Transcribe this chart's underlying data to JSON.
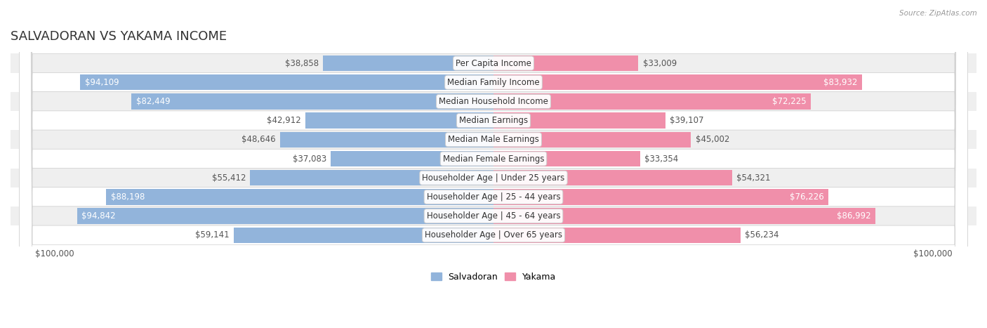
{
  "title": "SALVADORAN VS YAKAMA INCOME",
  "source": "Source: ZipAtlas.com",
  "categories": [
    "Per Capita Income",
    "Median Family Income",
    "Median Household Income",
    "Median Earnings",
    "Median Male Earnings",
    "Median Female Earnings",
    "Householder Age | Under 25 years",
    "Householder Age | 25 - 44 years",
    "Householder Age | 45 - 64 years",
    "Householder Age | Over 65 years"
  ],
  "salvadoran_values": [
    38858,
    94109,
    82449,
    42912,
    48646,
    37083,
    55412,
    88198,
    94842,
    59141
  ],
  "yakama_values": [
    33009,
    83932,
    72225,
    39107,
    45002,
    33354,
    54321,
    76226,
    86992,
    56234
  ],
  "salvadoran_labels": [
    "$38,858",
    "$94,109",
    "$82,449",
    "$42,912",
    "$48,646",
    "$37,083",
    "$55,412",
    "$88,198",
    "$94,842",
    "$59,141"
  ],
  "yakama_labels": [
    "$33,009",
    "$83,932",
    "$72,225",
    "$39,107",
    "$45,002",
    "$33,354",
    "$54,321",
    "$76,226",
    "$86,992",
    "$56,234"
  ],
  "salvadoran_label_inside": [
    false,
    true,
    true,
    false,
    false,
    false,
    false,
    true,
    true,
    false
  ],
  "yakama_label_inside": [
    false,
    true,
    true,
    false,
    false,
    false,
    false,
    true,
    true,
    false
  ],
  "max_value": 100000,
  "salvadoran_color": "#92b4db",
  "yakama_color": "#f08faa",
  "row_bg_color": "#efefef",
  "row_alt_color": "#ffffff",
  "legend_salvadoran": "Salvadoran",
  "legend_yakama": "Yakama",
  "title_fontsize": 13,
  "label_fontsize": 8.5,
  "category_fontsize": 8.5,
  "tick_fontsize": 8.5
}
